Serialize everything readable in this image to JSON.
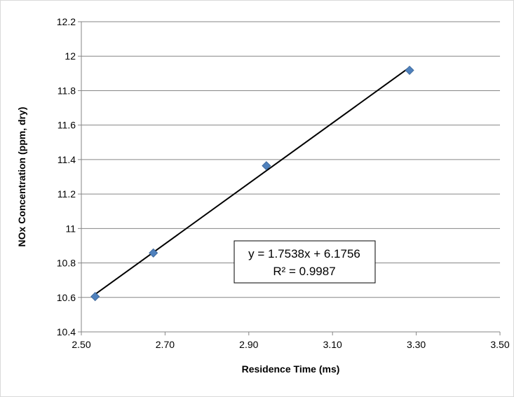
{
  "chart_data": {
    "type": "scatter",
    "title": "",
    "xlabel": "Residence Time (ms)",
    "ylabel": "NOx Concentration (ppm, dry)",
    "xlim": [
      2.5,
      3.5
    ],
    "ylim": [
      10.4,
      12.2
    ],
    "x_ticks": [
      "2.50",
      "2.70",
      "2.90",
      "3.10",
      "3.30",
      "3.50"
    ],
    "x_tick_values": [
      2.5,
      2.7,
      2.9,
      3.1,
      3.3,
      3.5
    ],
    "y_ticks": [
      "10.4",
      "10.6",
      "10.8",
      "11",
      "11.2",
      "11.4",
      "11.6",
      "11.8",
      "12",
      "12.2"
    ],
    "y_tick_values": [
      10.4,
      10.6,
      10.8,
      11.0,
      11.2,
      11.4,
      11.6,
      11.8,
      12.0,
      12.2
    ],
    "grid": "horizontal",
    "series": [
      {
        "x": [
          2.533,
          2.672,
          2.942,
          3.284
        ],
        "y": [
          10.605,
          10.858,
          11.364,
          11.918
        ],
        "marker": "diamond",
        "color": "#4f81bd"
      }
    ],
    "trendline": {
      "slope": 1.7538,
      "intercept": 6.1756,
      "x_range": [
        2.533,
        3.284
      ],
      "color": "#000000",
      "equation": "y = 1.7538x + 6.1756",
      "r_squared": "R² = 0.9987"
    }
  }
}
